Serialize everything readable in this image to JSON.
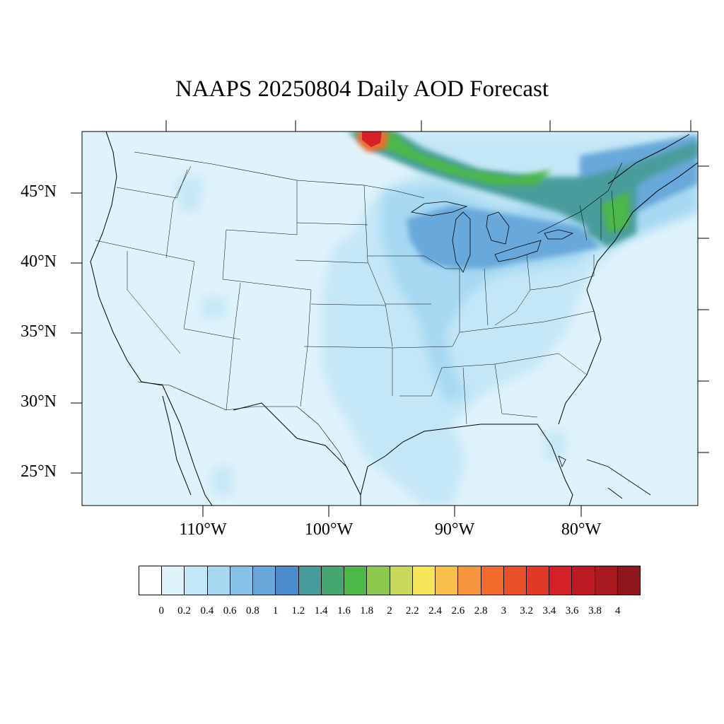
{
  "title": "NAAPS 20250804 Daily AOD Forecast",
  "lat_labels": [
    "45°N",
    "40°N",
    "35°N",
    "30°N",
    "25°N"
  ],
  "lon_labels": [
    "110°W",
    "100°W",
    "90°W",
    "80°W"
  ],
  "colorbar": {
    "colors": [
      "#ffffff",
      "#e0f3fb",
      "#c4e7f7",
      "#a6d8f2",
      "#86c1e8",
      "#68a8da",
      "#4a8dca",
      "#489c9c",
      "#45a672",
      "#4cb848",
      "#8cc84b",
      "#c8d85a",
      "#f6e65a",
      "#f8c04a",
      "#f7963d",
      "#f26b2d",
      "#e95129",
      "#e03a26",
      "#d42128",
      "#be1b24",
      "#a81a20",
      "#8f161c"
    ],
    "labels": [
      "0",
      "0.2",
      "0.4",
      "0.6",
      "0.8",
      "1",
      "1.2",
      "1.4",
      "1.6",
      "1.8",
      "2",
      "2.2",
      "2.4",
      "2.6",
      "2.8",
      "3",
      "3.2",
      "3.4",
      "3.6",
      "3.8",
      "4"
    ]
  },
  "map": {
    "background_color": "#e0f3fb",
    "smoke_plume_colors": [
      "#c4e7f7",
      "#a6d8f2",
      "#86c1e8",
      "#68a8da",
      "#4a8dca",
      "#489c9c",
      "#45a672",
      "#4cb848",
      "#8cc84b",
      "#f6e65a",
      "#f26b2d",
      "#d42128"
    ]
  }
}
